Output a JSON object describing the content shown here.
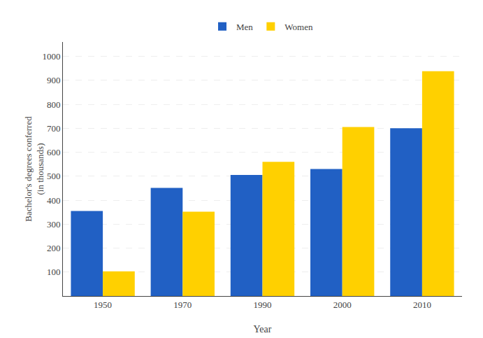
{
  "chart_data": {
    "type": "bar",
    "categories": [
      "1950",
      "1970",
      "1990",
      "2000",
      "2010"
    ],
    "series": [
      {
        "name": "Men",
        "color": "#2160C4",
        "values": [
          355,
          451,
          505,
          530,
          700
        ]
      },
      {
        "name": "Women",
        "color": "#FFD000",
        "values": [
          103,
          352,
          560,
          705,
          938
        ]
      }
    ],
    "xlabel": "Year",
    "ylabel": "Bachelor's degrees conferred\n(in thousands)",
    "ylim": [
      0,
      1060
    ],
    "yticks": [
      100,
      200,
      300,
      400,
      500,
      600,
      700,
      800,
      900,
      1000
    ],
    "grid": true,
    "legend": "top"
  }
}
